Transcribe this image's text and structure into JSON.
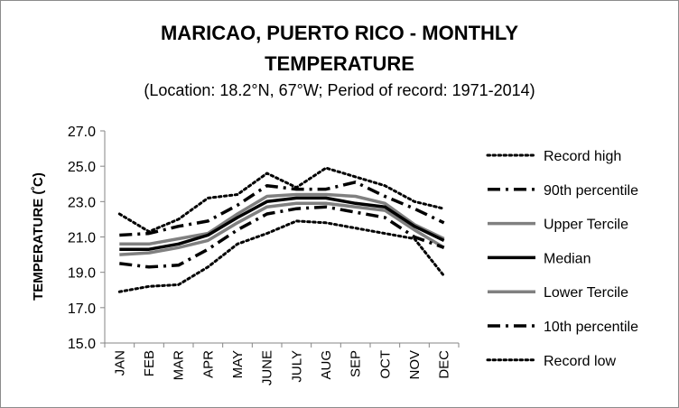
{
  "chart_data": {
    "type": "line",
    "title": "MARICAO, PUERTO RICO - MONTHLY TEMPERATURE",
    "subtitle": "(Location: 18.2°N, 67°W; Period of record: 1971-2014)",
    "title_line1": "MARICAO, PUERTO RICO - MONTHLY",
    "title_line2": "TEMPERATURE",
    "xlabel": "",
    "ylabel": "TEMPERATURE (ºC)",
    "ylabel_main": "TEMPERATURE (",
    "ylabel_sup": "º",
    "ylabel_end": "C)",
    "ylim": [
      15.0,
      27.0
    ],
    "yticks": [
      "15.0",
      "17.0",
      "19.0",
      "21.0",
      "23.0",
      "25.0",
      "27.0"
    ],
    "grid": false,
    "legend_position": "right",
    "categories": [
      "JAN",
      "FEB",
      "MAR",
      "APR",
      "MAY",
      "JUNE",
      "JULY",
      "AUG",
      "SEP",
      "OCT",
      "NOV",
      "DEC"
    ],
    "series": [
      {
        "name": "Record high",
        "style": "dotted",
        "color": "#000000",
        "values": [
          22.3,
          21.3,
          22.0,
          23.2,
          23.4,
          24.6,
          23.8,
          24.9,
          24.4,
          23.9,
          23.0,
          22.6
        ]
      },
      {
        "name": "90th percentile",
        "style": "dashdot",
        "color": "#000000",
        "values": [
          21.1,
          21.2,
          21.6,
          21.9,
          22.8,
          23.9,
          23.7,
          23.7,
          24.1,
          23.3,
          22.6,
          21.8
        ]
      },
      {
        "name": "Upper Tercile",
        "style": "solid",
        "color": "#808080",
        "values": [
          20.6,
          20.6,
          20.9,
          21.2,
          22.3,
          23.3,
          23.4,
          23.4,
          23.3,
          22.9,
          21.7,
          20.9
        ]
      },
      {
        "name": "Median",
        "style": "solid",
        "color": "#000000",
        "values": [
          20.3,
          20.3,
          20.6,
          21.1,
          22.1,
          23.0,
          23.2,
          23.2,
          22.9,
          22.7,
          21.6,
          20.8
        ]
      },
      {
        "name": "Lower Tercile",
        "style": "solid",
        "color": "#808080",
        "values": [
          20.0,
          20.1,
          20.4,
          20.8,
          21.8,
          22.7,
          22.9,
          22.9,
          22.7,
          22.5,
          21.4,
          20.4
        ]
      },
      {
        "name": "10th percentile",
        "style": "dashdot",
        "color": "#000000",
        "values": [
          19.5,
          19.3,
          19.4,
          20.3,
          21.4,
          22.3,
          22.6,
          22.7,
          22.4,
          22.1,
          21.0,
          20.4
        ]
      },
      {
        "name": "Record low",
        "style": "dotted",
        "color": "#000000",
        "values": [
          17.9,
          18.2,
          18.3,
          19.3,
          20.6,
          21.2,
          21.9,
          21.8,
          21.5,
          21.2,
          20.9,
          18.8
        ]
      }
    ]
  }
}
